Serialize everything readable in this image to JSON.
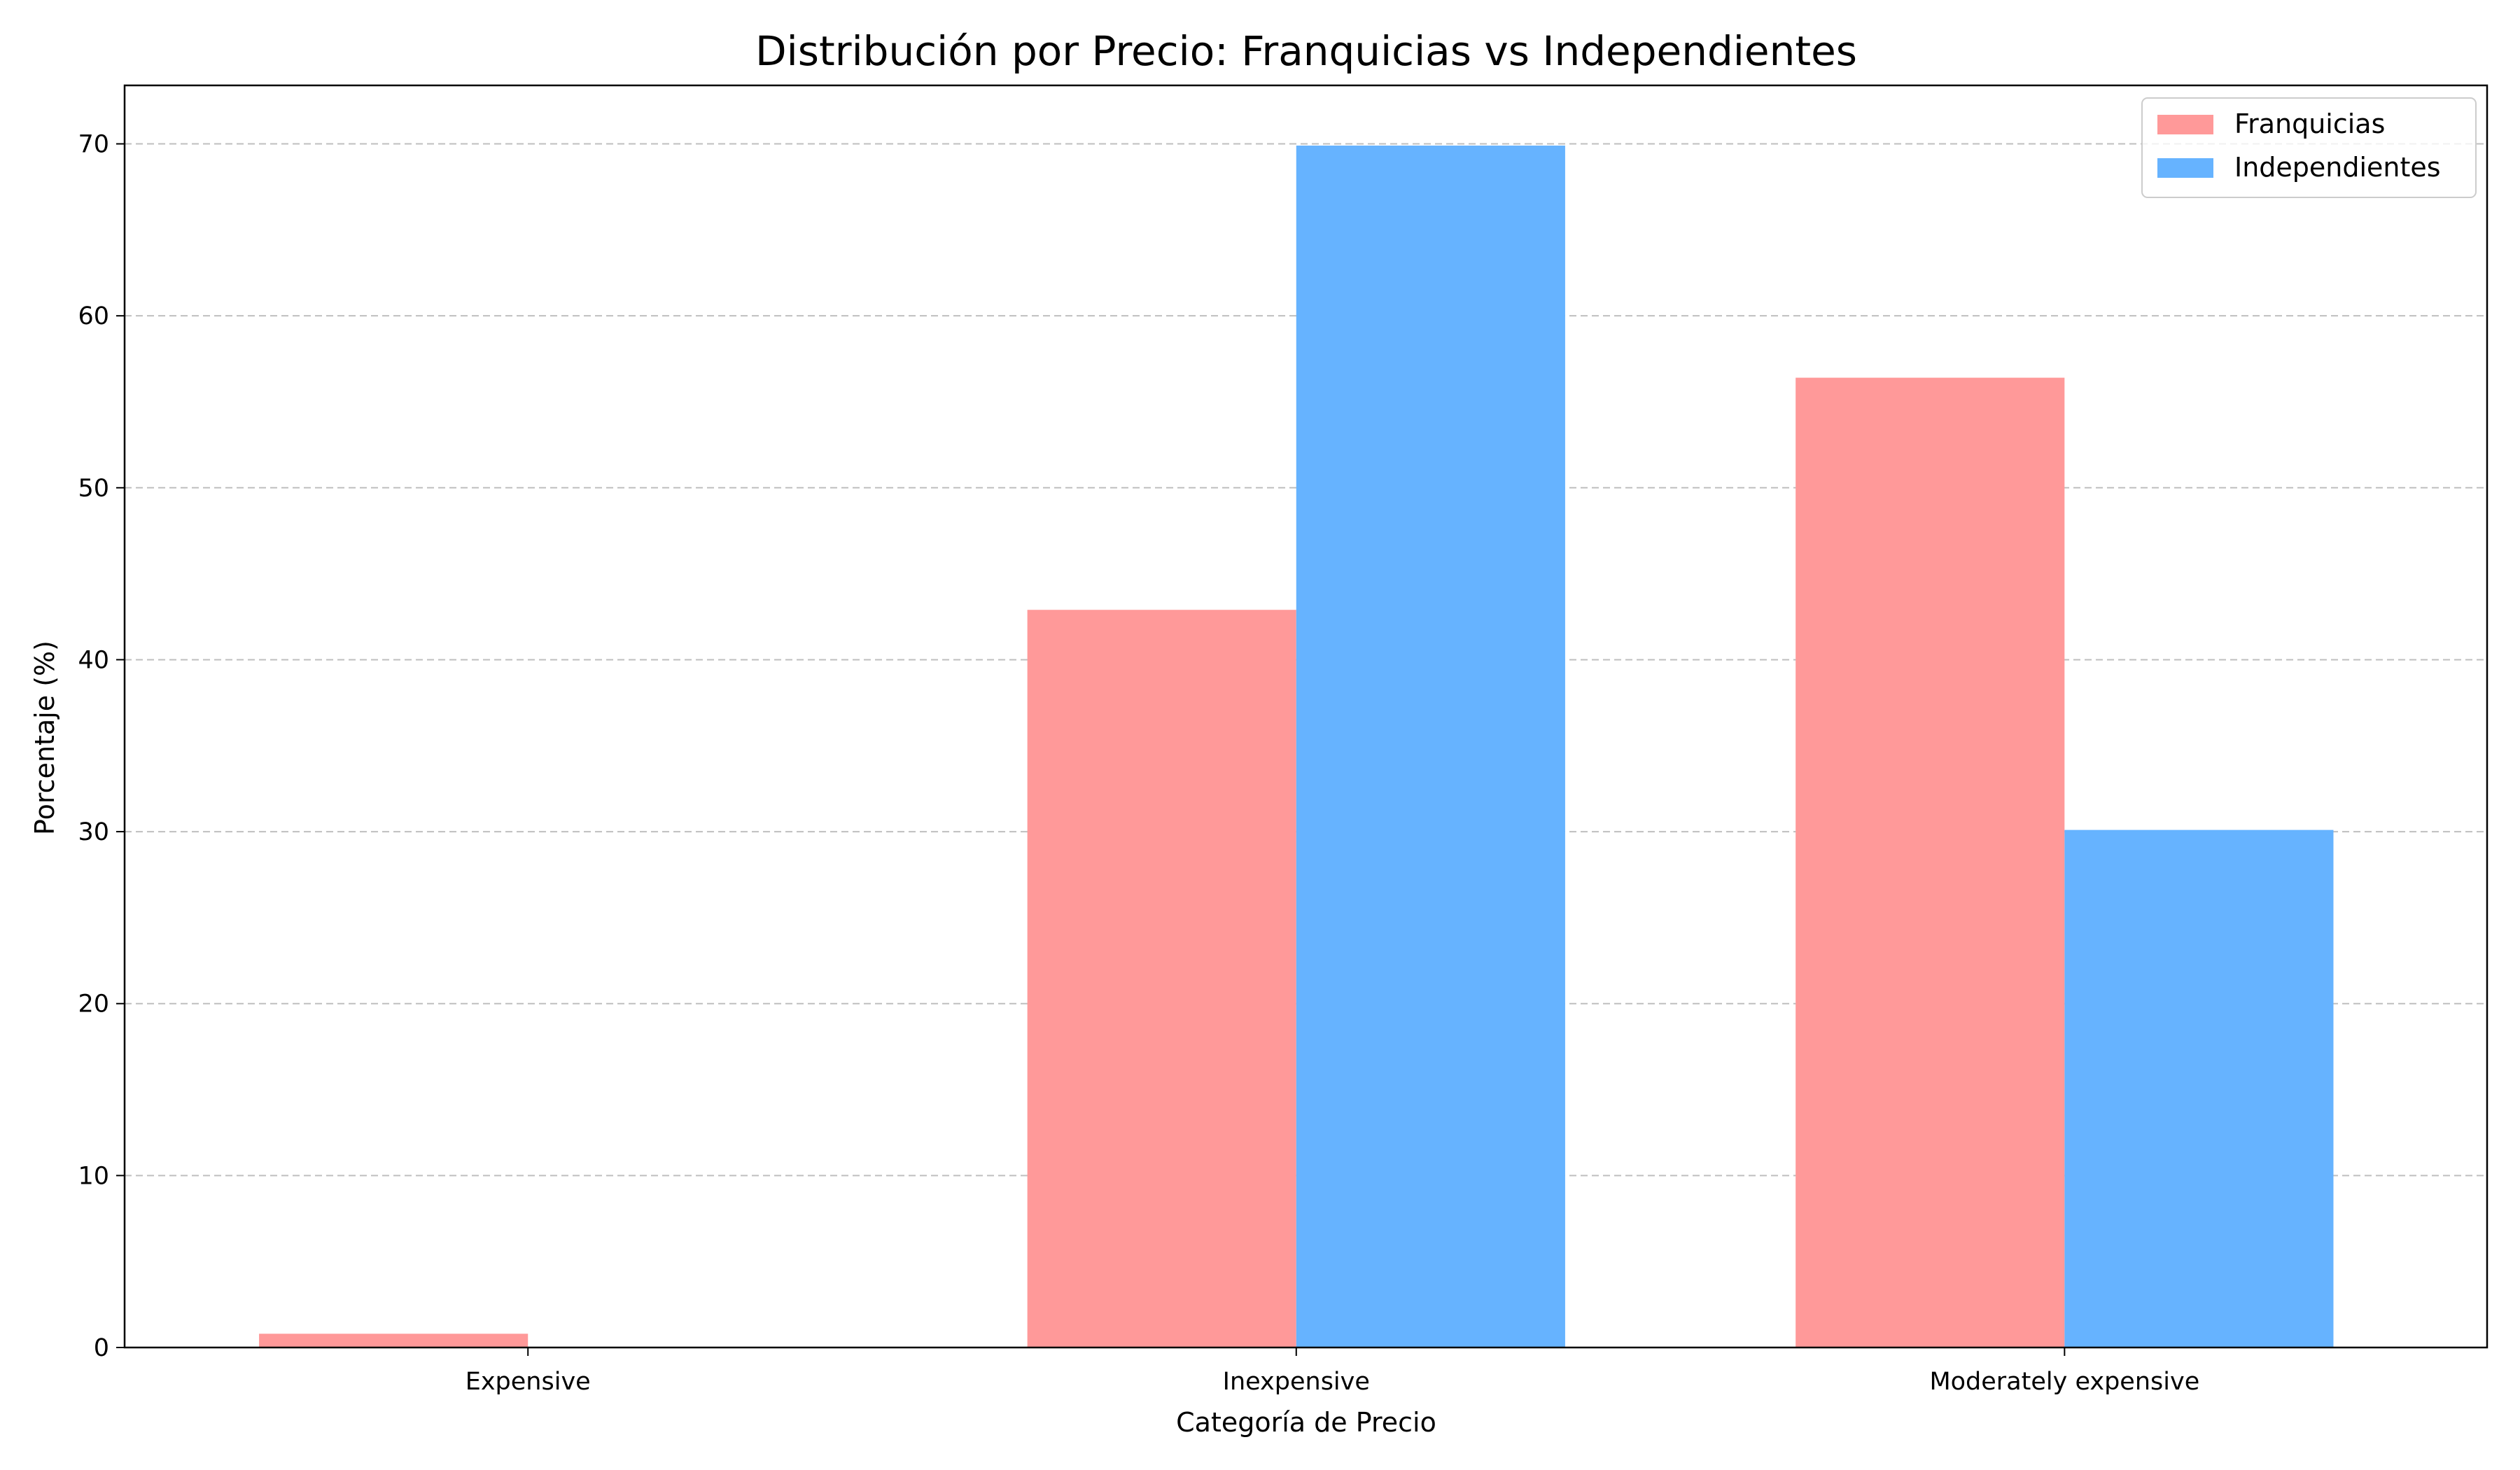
{
  "chart_data": {
    "type": "bar",
    "title": "Distribución por Precio: Franquicias vs Independientes",
    "xlabel": "Categoría de Precio",
    "ylabel": "Porcentaje (%)",
    "categories": [
      "Expensive",
      "Inexpensive",
      "Moderately expensive"
    ],
    "series": [
      {
        "name": "Franquicias",
        "values": [
          0.8,
          42.9,
          56.4
        ],
        "color": "#ff9999"
      },
      {
        "name": "Independientes",
        "values": [
          0.0,
          69.9,
          30.1
        ],
        "color": "#66b3ff"
      }
    ],
    "ylim": [
      0,
      73.4
    ],
    "yticks": [
      "0",
      "10",
      "20",
      "30",
      "40",
      "50",
      "60",
      "70"
    ],
    "grid": "y-dashed",
    "legend_position": "top-right"
  }
}
